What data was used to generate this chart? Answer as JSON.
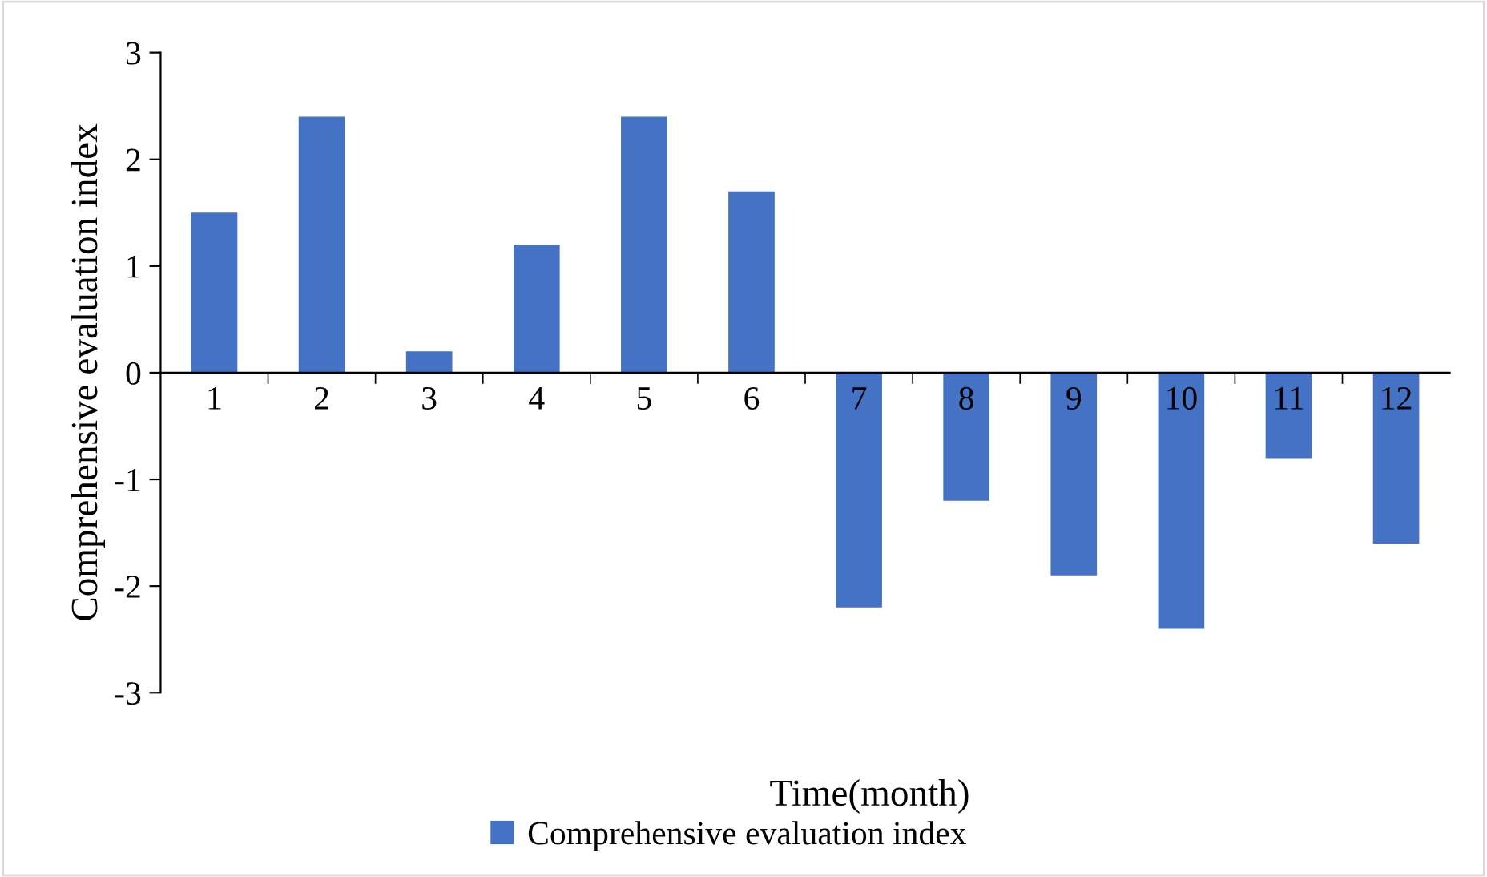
{
  "chart_data": {
    "type": "bar",
    "xlabel": "Time(month)",
    "ylabel": "Comprehensive evaluation index",
    "categories": [
      "1",
      "2",
      "3",
      "4",
      "5",
      "6",
      "7",
      "8",
      "9",
      "10",
      "11",
      "12"
    ],
    "series": [
      {
        "name": "Comprehensive evaluation index",
        "color": "#4472c4",
        "values": [
          1.5,
          2.4,
          0.2,
          1.2,
          2.4,
          1.7,
          -2.2,
          -1.2,
          -1.9,
          -2.4,
          -0.8,
          -1.6
        ]
      }
    ],
    "ylim": [
      -3,
      3
    ],
    "yticks": [
      -3,
      -2,
      -1,
      0,
      1,
      2,
      3
    ],
    "grid": false,
    "legend": "bottom"
  }
}
